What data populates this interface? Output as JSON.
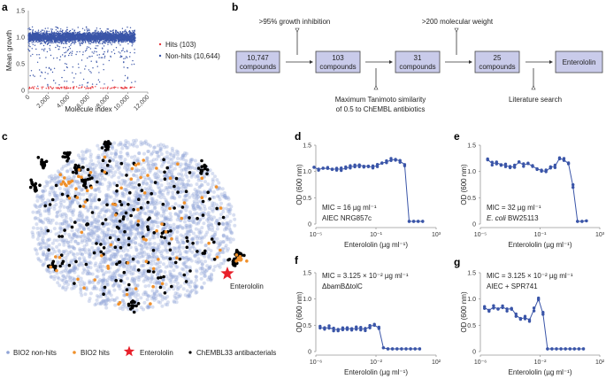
{
  "panel_labels": {
    "a": "a",
    "b": "b",
    "c": "c",
    "d": "d",
    "e": "e",
    "f": "f",
    "g": "g"
  },
  "colors": {
    "non_hits": "#3a55a8",
    "hits": "#e8383d",
    "bio2_non_hits": "#8fa3d6",
    "bio2_hits": "#f0902a",
    "enterololin": "#e8202a",
    "chembl": "#000000",
    "curve": "#3a55a8",
    "box_fill": "#c9cbea"
  },
  "flowchart": {
    "boxes": [
      {
        "line1": "10,747",
        "line2": "compounds"
      },
      {
        "line1": "103",
        "line2": "compounds"
      },
      {
        "line1": "31",
        "line2": "compounds"
      },
      {
        "line1": "25",
        "line2": "compounds"
      },
      {
        "line1": "Enterololin",
        "line2": ""
      }
    ],
    "filters": {
      "growth": ">95% growth inhibition",
      "tanimoto_1": "Maximum Tanimoto similarity",
      "tanimoto_2": "of 0.5 to ChEMBL antibiotics",
      "weight": ">200 molecular weight",
      "literature": "Literature search"
    }
  },
  "chart_data": [
    {
      "panel": "a",
      "type": "scatter",
      "xlabel": "Molecule index",
      "ylabel": "Mean growth",
      "xlim": [
        0,
        12000
      ],
      "ylim": [
        0,
        1.5
      ],
      "xticks": [
        "0",
        "2,000",
        "4,000",
        "6,000",
        "8,000",
        "10,000",
        "12,000"
      ],
      "yticks": [
        "0",
        "0.5",
        "1.0",
        "1.5"
      ],
      "legend_position": "right",
      "series": [
        {
          "name": "Hits (103)",
          "count": 103,
          "typical_y": 0.05
        },
        {
          "name": "Non-hits (10,644)",
          "count": 10644,
          "typical_y": 1.0
        }
      ]
    },
    {
      "panel": "c",
      "type": "scatter",
      "legend_position": "bottom",
      "annotation": "Enterololin",
      "series": [
        {
          "name": "BIO2 non-hits"
        },
        {
          "name": "BIO2 hits"
        },
        {
          "name": "Enterololin"
        },
        {
          "name": "ChEMBL33 antibacterials"
        }
      ]
    },
    {
      "panel": "d",
      "type": "line",
      "log_x": true,
      "xlabel": "Enterololin (µg ml⁻¹)",
      "ylabel": "OD (600 nm)",
      "xlim_log10": [
        -5,
        3
      ],
      "xticks": [
        "10⁻⁵",
        "10⁻¹",
        "10³"
      ],
      "ylim": [
        0,
        1.5
      ],
      "yticks": [
        "0",
        "0.5",
        "1.0",
        "1.5"
      ],
      "annotation_1": "MIC = 16 µg ml⁻¹",
      "annotation_2": "AIEC NRG857c",
      "annotation_2_italic": "",
      "max_conc": 128,
      "od": [
        1.08,
        1.04,
        1.06,
        1.06,
        1.04,
        1.05,
        1.04,
        1.06,
        1.09,
        1.1,
        1.12,
        1.1,
        1.1,
        1.08,
        1.12,
        1.16,
        1.18,
        1.22,
        1.23,
        1.2,
        1.13,
        0.05,
        0.05,
        0.05,
        0.05
      ]
    },
    {
      "panel": "e",
      "type": "line",
      "log_x": true,
      "xlabel": "Enterololin (µg ml⁻¹)",
      "ylabel": "OD (600 nm)",
      "xlim_log10": [
        -5,
        3
      ],
      "xticks": [
        "10⁻⁵",
        "10⁻¹",
        "10³"
      ],
      "ylim": [
        0,
        1.5
      ],
      "yticks": [
        "0",
        "0.5",
        "1.0",
        "1.5"
      ],
      "annotation_1": "MIC = 32 µg ml⁻¹",
      "annotation_2": "BW25113",
      "annotation_2_italic": "E. coli",
      "max_conc": 128,
      "od": [
        1.23,
        1.15,
        1.17,
        1.13,
        1.12,
        1.08,
        1.1,
        1.18,
        1.12,
        1.15,
        1.1,
        1.05,
        1.02,
        1.0,
        1.08,
        1.1,
        1.25,
        1.22,
        1.15,
        0.72,
        0.05,
        0.05,
        0.06
      ]
    },
    {
      "panel": "f",
      "type": "line",
      "log_x": true,
      "xlabel": "Enterololin (µg ml⁻¹)",
      "ylabel": "OD (600 nm)",
      "xlim_log10": [
        -6,
        2
      ],
      "xticks": [
        "10⁻⁶",
        "10⁻²",
        "10²"
      ],
      "ylim": [
        0,
        1.5
      ],
      "yticks": [
        "0",
        "0.5",
        "1.0",
        "1.5"
      ],
      "annotation_1": "MIC = 3.125 × 10⁻² µg ml⁻¹",
      "annotation_2": "ΔbamBΔtolC",
      "annotation_2_italic": "",
      "max_conc": 8,
      "od": [
        0.46,
        0.44,
        0.46,
        0.42,
        0.42,
        0.43,
        0.44,
        0.43,
        0.44,
        0.44,
        0.42,
        0.48,
        0.5,
        0.45,
        0.07,
        0.05,
        0.05,
        0.05,
        0.05,
        0.05,
        0.05,
        0.05,
        0.05
      ]
    },
    {
      "panel": "g",
      "type": "line",
      "log_x": true,
      "xlabel": "Enterololin (µg ml⁻¹)",
      "ylabel": "OD (600 nm)",
      "xlim_log10": [
        -6,
        2
      ],
      "xticks": [
        "10⁻⁶",
        "10⁻²",
        "10²"
      ],
      "ylim": [
        0,
        1.5
      ],
      "yticks": [
        "0",
        "0.5",
        "1.0",
        "1.5"
      ],
      "annotation_1": "MIC = 3.125 × 10⁻² µg ml⁻¹",
      "annotation_2": "AIEC + SPR741",
      "annotation_2_italic": "",
      "max_conc": 8,
      "od": [
        0.84,
        0.78,
        0.85,
        0.81,
        0.85,
        0.8,
        0.82,
        0.7,
        0.62,
        0.65,
        0.6,
        0.8,
        1.0,
        0.72,
        0.05,
        0.05,
        0.05,
        0.05,
        0.05,
        0.05,
        0.05,
        0.05,
        0.05
      ]
    }
  ]
}
